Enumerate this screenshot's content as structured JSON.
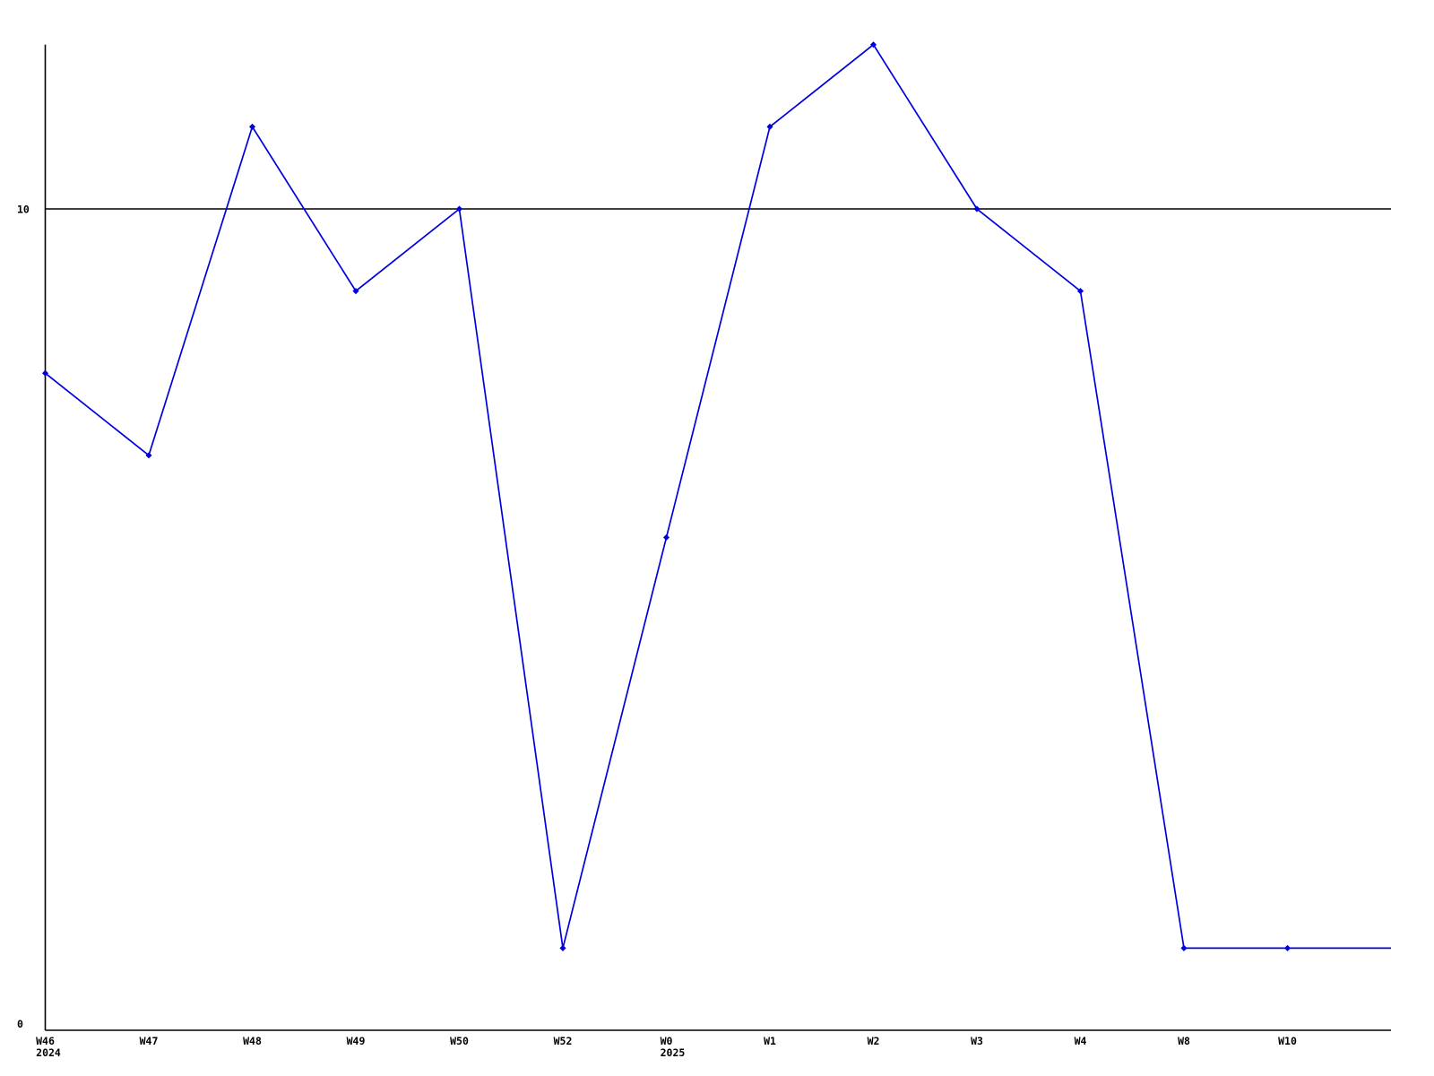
{
  "chart_data": {
    "type": "line",
    "title": "",
    "xlabel": "",
    "ylabel": "",
    "categories": [
      "W46",
      "W47",
      "W48",
      "W49",
      "W50",
      "W52",
      "W0",
      "W1",
      "W2",
      "W3",
      "W4",
      "W8",
      "W10"
    ],
    "values": [
      8,
      7,
      11,
      9,
      10,
      1,
      6,
      11,
      12,
      10,
      9,
      1,
      1
    ],
    "trailing_point": {
      "value": 1,
      "has_marker": false
    },
    "year_annotations": [
      {
        "tick_index": 0,
        "label": "2024"
      },
      {
        "tick_index": 6,
        "label": "2025"
      }
    ],
    "y_ticks": [
      {
        "value": 0,
        "label": "0"
      },
      {
        "value": 10,
        "label": "10"
      }
    ],
    "reference_line_value": 10,
    "ylim": [
      0,
      12
    ],
    "grid": "single horizontal reference line at y=10",
    "legend_position": "none",
    "line_color": "#0000dd",
    "marker_shape": "diamond",
    "axis_color": "#000000",
    "background_color": "#ffffff"
  }
}
